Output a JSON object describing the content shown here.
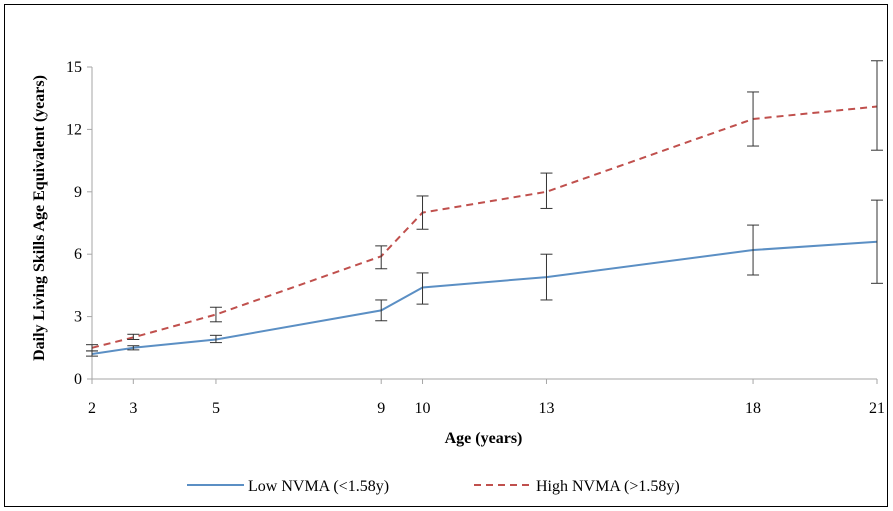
{
  "chart_data": {
    "type": "line",
    "title": "",
    "xlabel": "Age (years)",
    "ylabel": "Daily Living Skills Age Equivalent (years)",
    "x": [
      2,
      3,
      5,
      9,
      10,
      13,
      18,
      21
    ],
    "x_tick_labels": [
      "2",
      "3",
      "5",
      "9",
      "10",
      "13",
      "18",
      "21"
    ],
    "xlim": [
      2,
      21
    ],
    "ylim": [
      0,
      15
    ],
    "y_ticks": [
      0,
      3,
      6,
      9,
      12,
      15
    ],
    "y_tick_labels": [
      "0",
      "3",
      "6",
      "9",
      "12",
      "15"
    ],
    "grid": false,
    "legend_position": "bottom",
    "series": [
      {
        "name": "Low NVMA (<1.58y)",
        "color": "#5b8fc4",
        "dash": "solid",
        "values": [
          1.2,
          1.5,
          1.9,
          3.3,
          4.4,
          4.9,
          6.2,
          6.6
        ],
        "error_low": [
          1.1,
          1.4,
          1.75,
          2.8,
          3.6,
          3.8,
          5.0,
          4.6
        ],
        "error_high": [
          1.35,
          1.6,
          2.1,
          3.8,
          5.1,
          6.0,
          7.4,
          8.6
        ]
      },
      {
        "name": "High NVMA (>1.58y)",
        "color": "#c0504d",
        "dash": "dashed",
        "values": [
          1.5,
          2.0,
          3.1,
          5.9,
          8.0,
          9.0,
          12.5,
          13.1
        ],
        "error_low": [
          1.35,
          1.9,
          2.75,
          5.3,
          7.2,
          8.2,
          11.2,
          11.0
        ],
        "error_high": [
          1.65,
          2.15,
          3.45,
          6.4,
          8.8,
          9.9,
          13.8,
          15.3
        ]
      }
    ]
  }
}
